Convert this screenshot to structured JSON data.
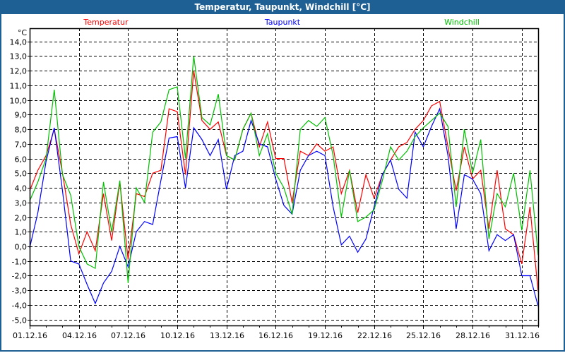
{
  "window": {
    "title": "Temperatur, Taupunkt, Windchill [°C]"
  },
  "chart_data": {
    "type": "line",
    "title": "Temperatur, Taupunkt, Windchill [°C]",
    "ylabel": "°C",
    "xlabel": "",
    "ylim": [
      -5.4,
      14.9
    ],
    "xlim": [
      "2016-12-01 00:00",
      "2017-01-01 00:00"
    ],
    "grid": true,
    "legend_placement": "top",
    "yticks": [
      "14,0",
      "13,0",
      "12,0",
      "11,0",
      "10,0",
      "9,0",
      "8,0",
      "7,0",
      "6,0",
      "5,0",
      "4,0",
      "3,0",
      "2,0",
      "1,0",
      "0,0",
      "-1,0",
      "-2,0",
      "-3,0",
      "-4,0",
      "-5,0"
    ],
    "ytick_values": [
      14,
      13,
      12,
      11,
      10,
      9,
      8,
      7,
      6,
      5,
      4,
      3,
      2,
      1,
      0,
      -1,
      -2,
      -3,
      -4,
      -5
    ],
    "xticks": [
      "01.12.16",
      "04.12.16",
      "07.12.16",
      "10.12.16",
      "13.12.16",
      "16.12.16",
      "19.12.16",
      "22.12.16",
      "25.12.16",
      "28.12.16",
      "31.12.16"
    ],
    "xtick_dates": [
      "2016-12-01",
      "2016-12-04",
      "2016-12-07",
      "2016-12-10",
      "2016-12-13",
      "2016-12-16",
      "2016-12-19",
      "2016-12-22",
      "2016-12-25",
      "2016-12-28",
      "2016-12-31"
    ],
    "x": [
      "2016-12-01 00:00",
      "2016-12-01 12:00",
      "2016-12-02 00:00",
      "2016-12-02 12:00",
      "2016-12-03 00:00",
      "2016-12-03 12:00",
      "2016-12-04 00:00",
      "2016-12-04 12:00",
      "2016-12-05 00:00",
      "2016-12-05 12:00",
      "2016-12-06 00:00",
      "2016-12-06 12:00",
      "2016-12-07 00:00",
      "2016-12-07 12:00",
      "2016-12-08 00:00",
      "2016-12-08 12:00",
      "2016-12-09 00:00",
      "2016-12-09 12:00",
      "2016-12-10 00:00",
      "2016-12-10 12:00",
      "2016-12-11 00:00",
      "2016-12-11 12:00",
      "2016-12-12 00:00",
      "2016-12-12 12:00",
      "2016-12-13 00:00",
      "2016-12-13 12:00",
      "2016-12-14 00:00",
      "2016-12-14 12:00",
      "2016-12-15 00:00",
      "2016-12-15 12:00",
      "2016-12-16 00:00",
      "2016-12-16 12:00",
      "2016-12-17 00:00",
      "2016-12-17 12:00",
      "2016-12-18 00:00",
      "2016-12-18 12:00",
      "2016-12-19 00:00",
      "2016-12-19 12:00",
      "2016-12-20 00:00",
      "2016-12-20 12:00",
      "2016-12-21 00:00",
      "2016-12-21 12:00",
      "2016-12-22 00:00",
      "2016-12-22 12:00",
      "2016-12-23 00:00",
      "2016-12-23 12:00",
      "2016-12-24 00:00",
      "2016-12-24 12:00",
      "2016-12-25 00:00",
      "2016-12-25 12:00",
      "2016-12-26 00:00",
      "2016-12-26 12:00",
      "2016-12-27 00:00",
      "2016-12-27 12:00",
      "2016-12-28 00:00",
      "2016-12-28 12:00",
      "2016-12-29 00:00",
      "2016-12-29 12:00",
      "2016-12-30 00:00",
      "2016-12-30 12:00",
      "2016-12-31 00:00",
      "2016-12-31 12:00",
      "2017-01-01 00:00"
    ],
    "series": [
      {
        "name": "Temperatur",
        "color": "#ff0000",
        "values": [
          3.8,
          5.2,
          6.2,
          8.0,
          5.0,
          1.5,
          -0.5,
          1.0,
          -0.3,
          3.6,
          0.4,
          4.4,
          -0.9,
          3.6,
          3.4,
          5.0,
          5.2,
          9.4,
          9.2,
          4.9,
          12.0,
          8.6,
          8.0,
          8.5,
          6.2,
          5.9,
          8.0,
          9.1,
          6.8,
          8.5,
          6.0,
          6.0,
          3.0,
          6.5,
          6.2,
          7.0,
          6.5,
          6.8,
          3.6,
          5.2,
          2.3,
          4.9,
          3.3,
          4.9,
          5.9,
          6.8,
          7.1,
          8.0,
          8.6,
          9.6,
          9.9,
          6.8,
          3.8,
          6.8,
          4.6,
          5.2,
          1.2,
          5.2,
          1.2,
          0.8,
          -1.2,
          2.7,
          -3.1
        ]
      },
      {
        "name": "Taupunkt",
        "color": "#0000ff",
        "values": [
          -0.1,
          2.3,
          5.8,
          8.1,
          3.8,
          -1.0,
          -1.2,
          -2.6,
          -3.9,
          -2.5,
          -1.7,
          0.0,
          -1.4,
          1.0,
          1.7,
          1.5,
          4.5,
          7.4,
          7.5,
          4.0,
          8.1,
          7.3,
          6.2,
          7.3,
          3.9,
          6.2,
          6.5,
          8.6,
          7.0,
          6.8,
          4.6,
          2.8,
          2.2,
          5.2,
          6.2,
          6.5,
          6.2,
          2.7,
          0.1,
          0.7,
          -0.4,
          0.5,
          2.7,
          4.9,
          5.9,
          3.9,
          3.3,
          7.8,
          6.8,
          8.2,
          9.4,
          6.2,
          1.2,
          4.9,
          4.6,
          3.6,
          -0.3,
          0.8,
          0.4,
          0.8,
          -2.0,
          -2.0,
          -4.1
        ]
      },
      {
        "name": "Windchill",
        "color": "#00c000",
        "values": [
          3.1,
          4.4,
          6.0,
          10.7,
          4.9,
          3.5,
          0.0,
          -1.2,
          -1.5,
          4.4,
          1.0,
          4.5,
          -2.5,
          4.0,
          3.0,
          7.8,
          8.5,
          10.7,
          10.9,
          6.0,
          13.0,
          8.8,
          8.3,
          10.4,
          6.2,
          5.9,
          8.0,
          9.1,
          6.2,
          7.7,
          5.0,
          4.0,
          2.2,
          8.0,
          8.6,
          8.2,
          8.8,
          6.2,
          2.0,
          5.2,
          1.7,
          2.0,
          2.5,
          4.5,
          6.8,
          5.9,
          6.5,
          7.5,
          8.1,
          8.6,
          9.1,
          8.2,
          2.7,
          8.0,
          5.0,
          7.3,
          0.5,
          3.6,
          2.7,
          5.0,
          1.1,
          5.2,
          -0.6
        ]
      }
    ]
  }
}
